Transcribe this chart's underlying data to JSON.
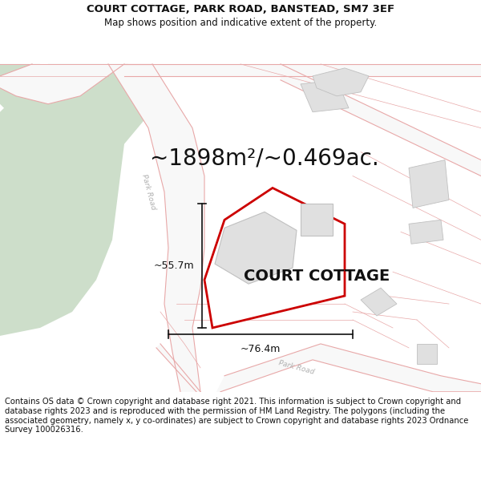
{
  "title": "COURT COTTAGE, PARK ROAD, BANSTEAD, SM7 3EF",
  "subtitle": "Map shows position and indicative extent of the property.",
  "area_text": "~1898m²/~0.469ac.",
  "label_cottage": "COURT COTTAGE",
  "dim_width": "~76.4m",
  "dim_height": "~55.7m",
  "footer": "Contains OS data © Crown copyright and database right 2021. This information is subject to Crown copyright and database rights 2023 and is reproduced with the permission of HM Land Registry. The polygons (including the associated geometry, namely x, y co-ordinates) are subject to Crown copyright and database rights 2023 Ordnance Survey 100026316.",
  "bg_color": "#ffffff",
  "map_bg": "#ffffff",
  "green_color": "#cddeca",
  "road_outline": "#e8a8a8",
  "road_fill": "#f5f5f5",
  "property_edge": "#cc0000",
  "property_fill": "#ffffff",
  "building_fill": "#e0e0e0",
  "building_edge": "#c0c0c0",
  "dim_line_color": "#111111",
  "text_color": "#111111",
  "title_fontsize": 9.5,
  "subtitle_fontsize": 8.5,
  "area_fontsize": 20,
  "label_fontsize": 14,
  "dim_fontsize": 9,
  "footer_fontsize": 7.2,
  "road_label_color": "#b0b0b0",
  "road_label_size": 6.5
}
